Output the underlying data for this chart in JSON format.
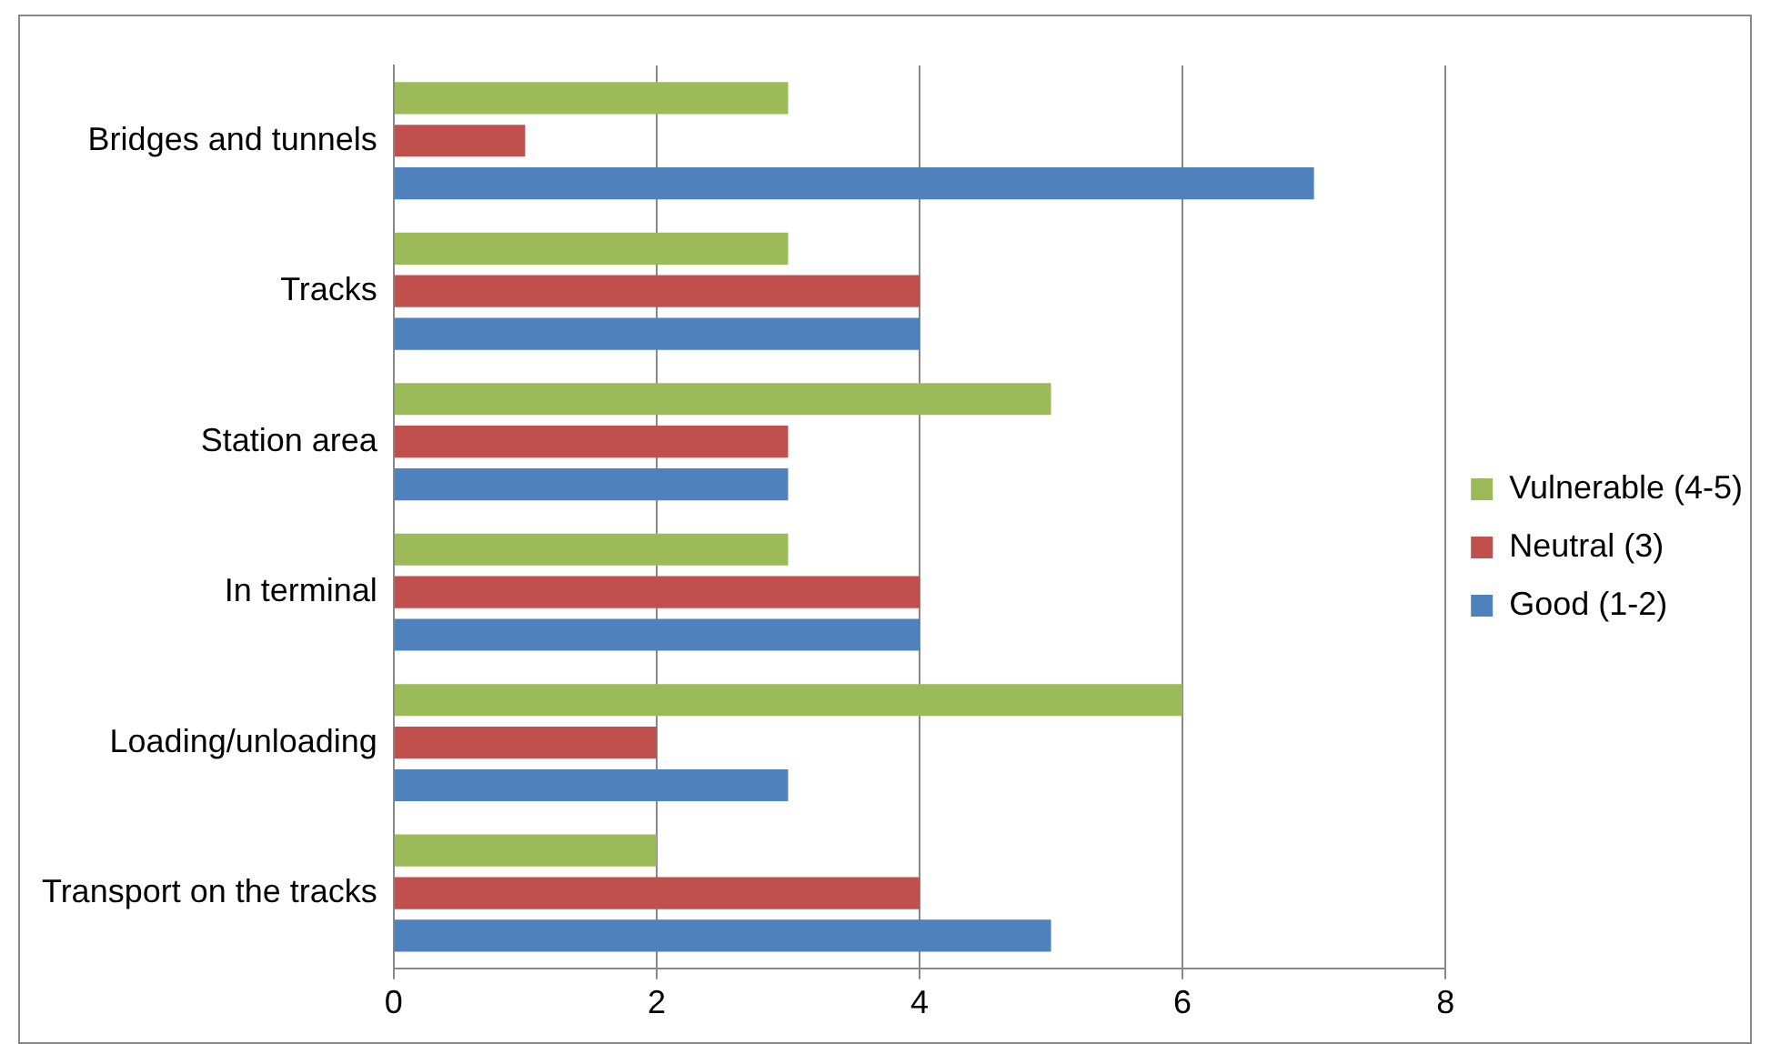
{
  "chart_data": {
    "type": "bar",
    "orientation": "horizontal",
    "categories": [
      "Bridges and tunnels",
      "Tracks",
      "Station area",
      "In terminal",
      "Loading/unloading",
      "Transport on the tracks"
    ],
    "series": [
      {
        "name": "Vulnerable (4-5)",
        "color": "#9bbb59",
        "values": [
          3,
          3,
          5,
          3,
          6,
          2
        ]
      },
      {
        "name": "Neutral (3)",
        "color": "#c0504d",
        "values": [
          1,
          4,
          3,
          4,
          2,
          4
        ]
      },
      {
        "name": "Good (1-2)",
        "color": "#4f81bd",
        "values": [
          7,
          4,
          3,
          4,
          3,
          5
        ]
      }
    ],
    "xlim": [
      0,
      8
    ],
    "xticks": [
      0,
      2,
      4,
      6,
      8
    ],
    "grid": "x",
    "legend": "right"
  }
}
